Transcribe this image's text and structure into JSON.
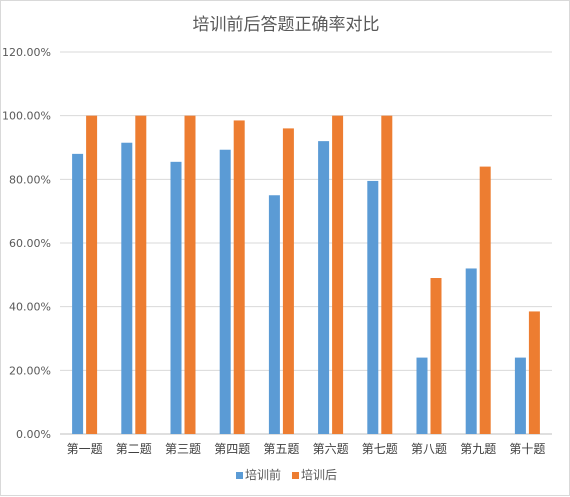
{
  "chart_data": {
    "type": "bar",
    "title": "培训前后答题正确率对比",
    "categories": [
      "第一题",
      "第二题",
      "第三题",
      "第四题",
      "第五题",
      "第六题",
      "第七题",
      "第八题",
      "第九题",
      "第十题"
    ],
    "series": [
      {
        "name": "培训前",
        "color": "#5b9bd5",
        "values": [
          88,
          91.5,
          85.5,
          89.3,
          75,
          92,
          79.5,
          24,
          52,
          24
        ]
      },
      {
        "name": "培训后",
        "color": "#ed7d31",
        "values": [
          100,
          100,
          100,
          98.5,
          96,
          100,
          100,
          49,
          84,
          38.5
        ]
      }
    ],
    "y_ticks": [
      "0.00%",
      "20.00%",
      "40.00%",
      "60.00%",
      "80.00%",
      "100.00%",
      "120.00%"
    ],
    "ylim": [
      0,
      120
    ],
    "value_format": "percent",
    "grid": true,
    "legend_position": "bottom"
  }
}
